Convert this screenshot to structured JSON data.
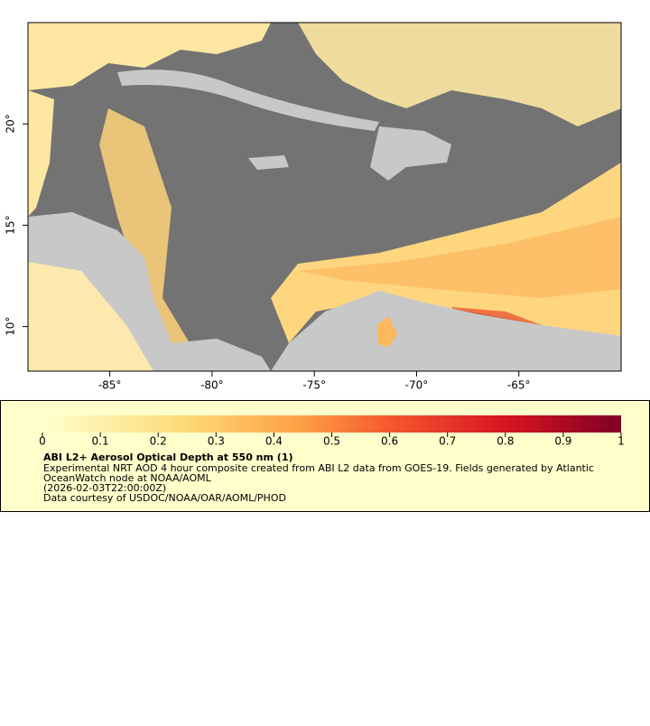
{
  "chart_data": {
    "type": "map",
    "xlim": [
      -89,
      -60
    ],
    "ylim": [
      7.8,
      25
    ],
    "xticks": [
      {
        "value": -85,
        "label": "-85°"
      },
      {
        "value": -80,
        "label": "-80°"
      },
      {
        "value": -75,
        "label": "-75°"
      },
      {
        "value": -70,
        "label": "-70°"
      },
      {
        "value": -65,
        "label": "-65°"
      }
    ],
    "yticks": [
      {
        "value": 10,
        "label": "10°"
      },
      {
        "value": 15,
        "label": "15°"
      },
      {
        "value": 20,
        "label": "20°"
      }
    ],
    "colorbar": {
      "clim": [
        0,
        1
      ],
      "ticks": [
        0,
        0.1,
        0.2,
        0.3,
        0.4,
        0.5,
        0.6,
        0.7,
        0.8,
        0.9,
        1
      ]
    },
    "title": "ABI L2+ Aerosol Optical Depth at 550 nm (1)",
    "lines": [
      "Experimental NRT AOD 4 hour composite created from ABI L2 data from GOES-19. Fields generated by Atlantic",
      "OceanWatch node at NOAA/AOML",
      "(2026-02-03T22:00:00Z)",
      "Data courtesy of USDOC/NOAA/OAR/AOML/PHOD"
    ]
  }
}
